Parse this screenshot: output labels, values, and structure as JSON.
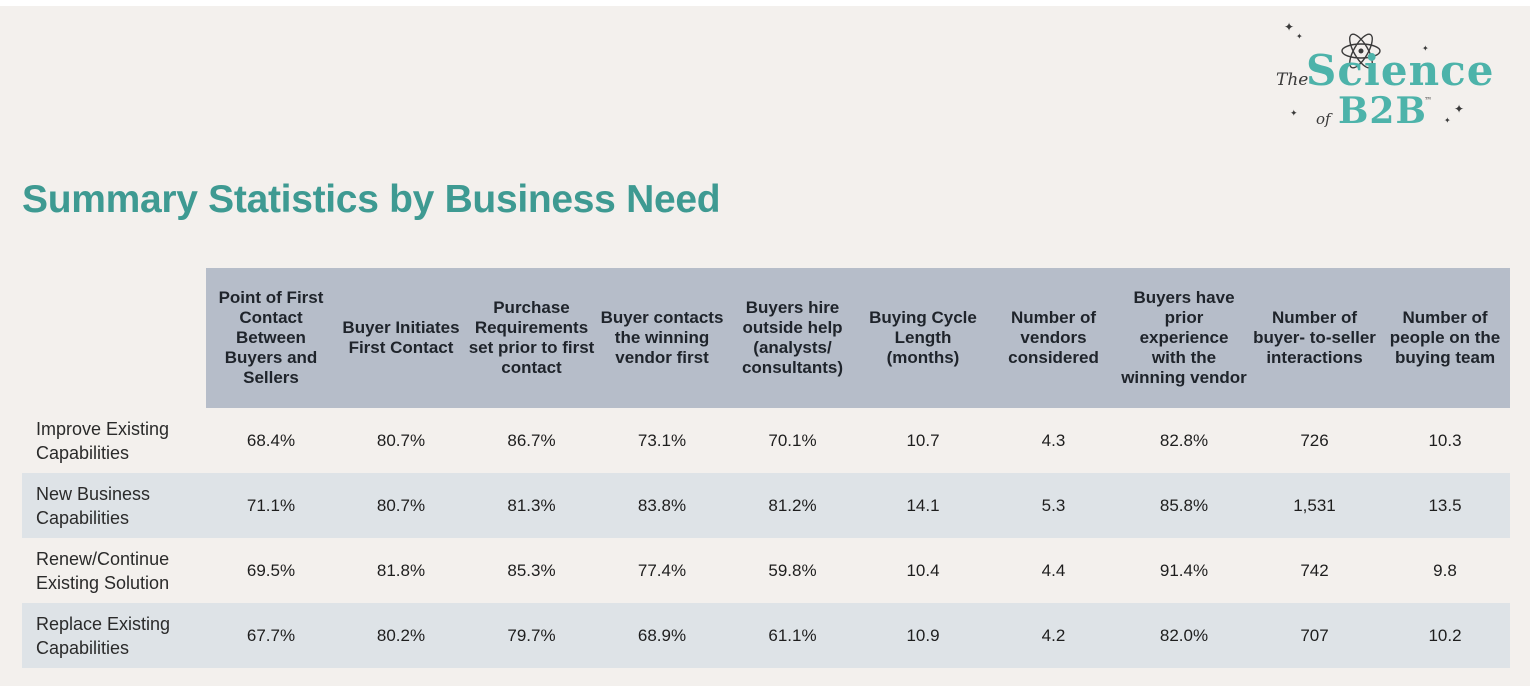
{
  "logo": {
    "the": "The",
    "science": "Science",
    "of": "of",
    "b2b": "B2B",
    "tm": "™"
  },
  "title": "Summary Statistics by Business Need",
  "chart_data": {
    "type": "table",
    "title": "Summary Statistics by Business Need",
    "columns": [
      "Point of First Contact Between Buyers and Sellers",
      "Buyer Initiates First Contact",
      "Purchase Requirements set prior to first contact",
      "Buyer contacts the winning vendor first",
      "Buyers hire outside help (analysts/ consultants)",
      "Buying Cycle Length (months)",
      "Number of vendors considered",
      "Buyers have prior experience with the winning vendor",
      "Number of buyer- to-seller interactions",
      "Number of people on the buying team"
    ],
    "rows": [
      {
        "label": "Improve Existing Capabilities",
        "values": [
          "68.4%",
          "80.7%",
          "86.7%",
          "73.1%",
          "70.1%",
          "10.7",
          "4.3",
          "82.8%",
          "726",
          "10.3"
        ]
      },
      {
        "label": "New Business Capabilities",
        "values": [
          "71.1%",
          "80.7%",
          "81.3%",
          "83.8%",
          "81.2%",
          "14.1",
          "5.3",
          "85.8%",
          "1,531",
          "13.5"
        ]
      },
      {
        "label": "Renew/Continue Existing Solution",
        "values": [
          "69.5%",
          "81.8%",
          "85.3%",
          "77.4%",
          "59.8%",
          "10.4",
          "4.4",
          "91.4%",
          "742",
          "9.8"
        ]
      },
      {
        "label": "Replace Existing Capabilities",
        "values": [
          "67.7%",
          "80.2%",
          "79.7%",
          "68.9%",
          "61.1%",
          "10.9",
          "4.2",
          "82.0%",
          "707",
          "10.2"
        ]
      }
    ]
  },
  "colors": {
    "background": "#f3f0ed",
    "title": "#3e9a92",
    "header_fill": "#b6bdc9",
    "alt_row_fill": "#dee3e7",
    "logo_teal": "#4db3aa"
  }
}
